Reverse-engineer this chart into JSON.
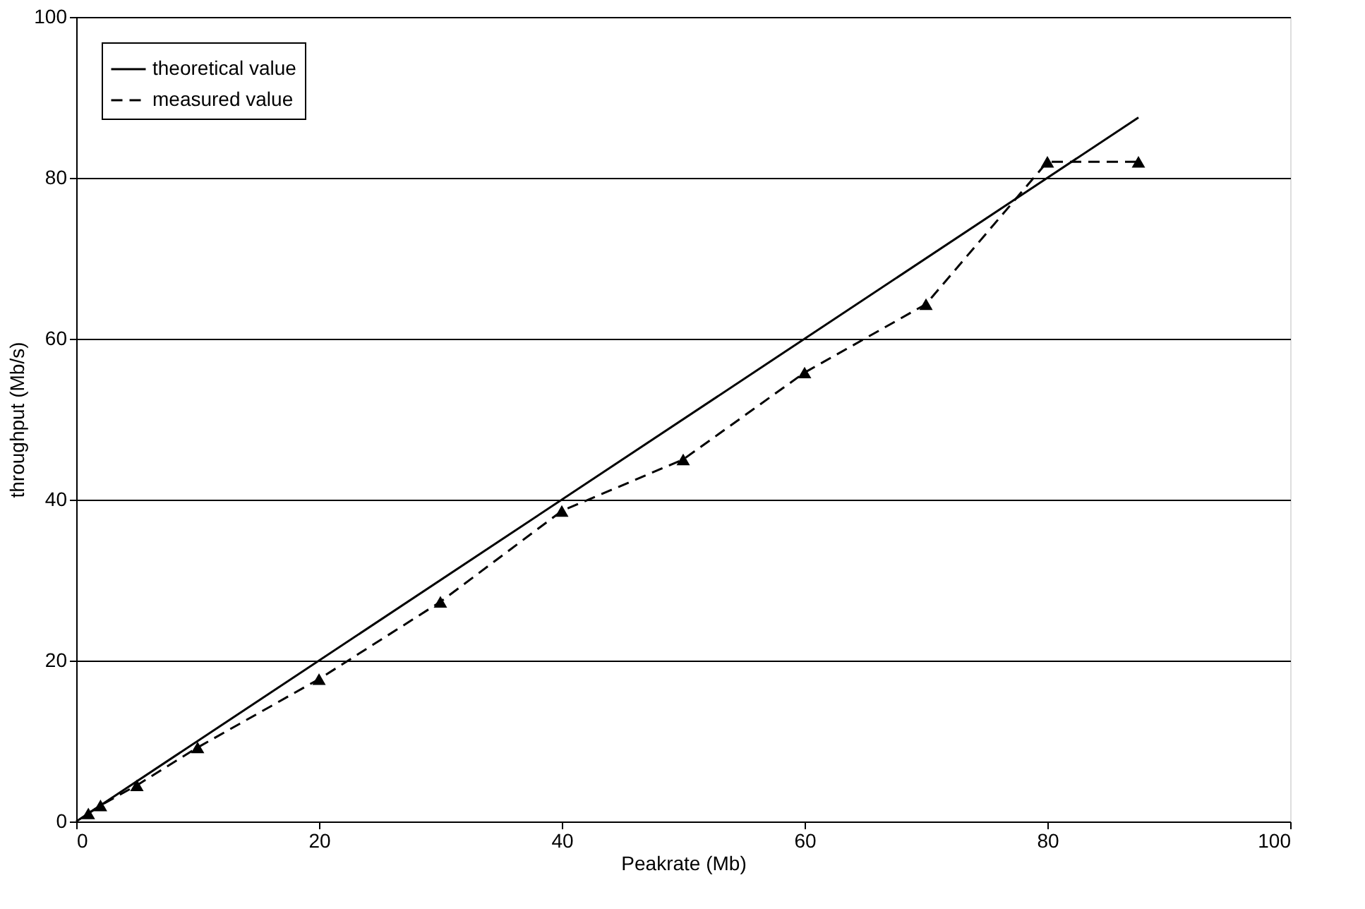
{
  "chart_data": {
    "type": "line",
    "xlabel": "Peakrate (Mb)",
    "ylabel": "throughput (Mb/s)",
    "xlim": [
      0,
      100
    ],
    "xticks": [
      0,
      20,
      40,
      60,
      80,
      100
    ],
    "ylim": [
      0,
      100
    ],
    "yticks": [
      0,
      20,
      40,
      60,
      80,
      100
    ],
    "grid": "y",
    "legend": "top left",
    "series": [
      {
        "name": "theoretical value",
        "color": "#000000",
        "x": [
          0,
          87.5
        ],
        "values": [
          0,
          87.5
        ],
        "line_style": "solid",
        "marker": "none"
      },
      {
        "name": "measured value",
        "color": "#000000",
        "x": [
          1,
          2,
          5,
          10,
          20,
          30,
          40,
          50,
          60,
          70,
          80,
          87.5
        ],
        "values": [
          1,
          2,
          4.5,
          9.2,
          17.7,
          27.3,
          38.6,
          45,
          55.8,
          64.3,
          82,
          82
        ],
        "line_style": "dashed",
        "marker": "triangle"
      }
    ]
  }
}
